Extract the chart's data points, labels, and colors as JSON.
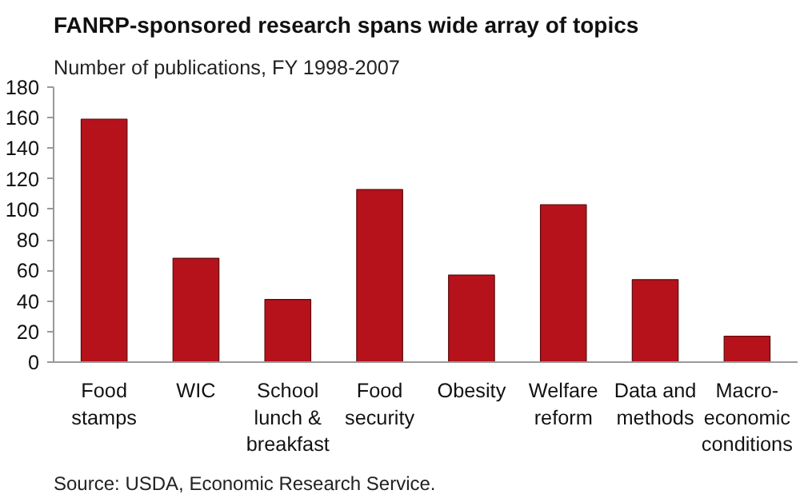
{
  "chart_data": {
    "type": "bar",
    "title": "FANRP-sponsored research spans wide array of topics",
    "subtitle": "Number of publications, FY 1998-2007",
    "categories": [
      "Food stamps",
      "WIC",
      "School lunch & breakfast",
      "Food security",
      "Obesity",
      "Welfare reform",
      "Data and methods",
      "Macro-economic conditions"
    ],
    "values": [
      159,
      68,
      41,
      113,
      57,
      103,
      54,
      17
    ],
    "color": "#b5121b",
    "ylim": [
      0,
      180
    ],
    "yticks": [
      0,
      20,
      40,
      60,
      80,
      100,
      120,
      140,
      160,
      180
    ],
    "grid": false,
    "annotations": [
      "Source: USDA, Economic Research Service."
    ]
  }
}
